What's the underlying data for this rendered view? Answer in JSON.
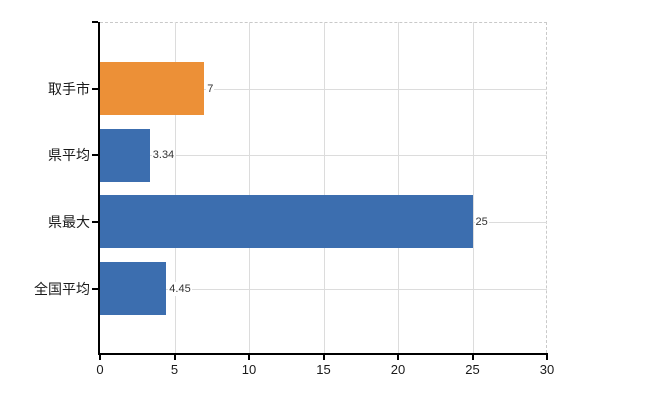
{
  "chart_data": {
    "type": "bar",
    "orientation": "horizontal",
    "title": "",
    "xlabel": "",
    "ylabel": "",
    "categories": [
      "取手市",
      "県平均",
      "県最大",
      "全国平均"
    ],
    "values": [
      7,
      3.34,
      25,
      4.45
    ],
    "value_labels": [
      "7",
      "3.34",
      "25",
      "4.45"
    ],
    "bar_colors": [
      "#EC9037",
      "#3C6EAF",
      "#3C6EAF",
      "#3C6EAF"
    ],
    "xlim": [
      0,
      30
    ],
    "x_ticks": [
      0,
      5,
      10,
      15,
      20,
      25,
      30
    ],
    "x_tick_labels": [
      "0",
      "5",
      "10",
      "15",
      "20",
      "25",
      "30"
    ],
    "grid": "on",
    "legend": "none",
    "colors": {
      "highlight": "#EC9037",
      "default": "#3C6EAF",
      "grid": "#dcdcdc",
      "axis": "#000000",
      "dashed_border": "#c9c9c9",
      "tick_text": "#1a1a1a",
      "value_text": "#333333",
      "background": "#ffffff"
    }
  }
}
